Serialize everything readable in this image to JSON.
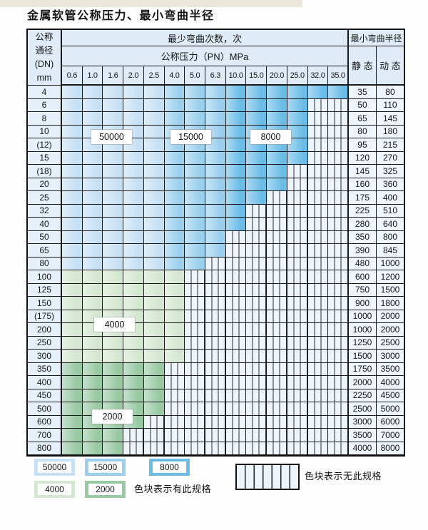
{
  "title": "金属软管公称压力、最小弯曲半径",
  "table": {
    "corner": [
      "公称",
      "通径",
      "(DN)",
      "mm"
    ],
    "bend_cycles_header": "最少弯曲次数，次",
    "pressure_header": "公称压力（PN）MPa",
    "radius_header": "最小弯曲半径",
    "static_header": "静 态",
    "dynamic_header": "动 态",
    "pressures": [
      "0.6",
      "1.0",
      "1.6",
      "2.0",
      "2.5",
      "4.0",
      "5.0",
      "6.3",
      "10.0",
      "15.0",
      "20.0",
      "25.0",
      "32.0",
      "35.0"
    ],
    "rows": [
      {
        "dn": "4",
        "zone": "blue",
        "colored_to": 13,
        "static": "35",
        "dynamic": "80"
      },
      {
        "dn": "6",
        "zone": "blue",
        "colored_to": 11,
        "static": "50",
        "dynamic": "110"
      },
      {
        "dn": "8",
        "zone": "blue",
        "colored_to": 11,
        "static": "65",
        "dynamic": "145"
      },
      {
        "dn": "10",
        "zone": "blue",
        "colored_to": 11,
        "static": "80",
        "dynamic": "180"
      },
      {
        "dn": "(12)",
        "zone": "blue",
        "colored_to": 11,
        "static": "95",
        "dynamic": "215"
      },
      {
        "dn": "15",
        "zone": "blue",
        "colored_to": 11,
        "static": "120",
        "dynamic": "270"
      },
      {
        "dn": "(18)",
        "zone": "blue",
        "colored_to": 10,
        "static": "145",
        "dynamic": "325"
      },
      {
        "dn": "20",
        "zone": "blue",
        "colored_to": 10,
        "static": "160",
        "dynamic": "360"
      },
      {
        "dn": "25",
        "zone": "blue",
        "colored_to": 9,
        "static": "175",
        "dynamic": "400"
      },
      {
        "dn": "32",
        "zone": "blue",
        "colored_to": 8,
        "static": "225",
        "dynamic": "510"
      },
      {
        "dn": "40",
        "zone": "blue",
        "colored_to": 8,
        "static": "280",
        "dynamic": "640"
      },
      {
        "dn": "50",
        "zone": "blue",
        "colored_to": 7,
        "static": "350",
        "dynamic": "800"
      },
      {
        "dn": "65",
        "zone": "blue",
        "colored_to": 7,
        "static": "390",
        "dynamic": "845"
      },
      {
        "dn": "80",
        "zone": "blue",
        "colored_to": 6,
        "static": "480",
        "dynamic": "1000"
      },
      {
        "dn": "100",
        "zone": "g4000",
        "colored_to": 5,
        "static": "600",
        "dynamic": "1200"
      },
      {
        "dn": "125",
        "zone": "g4000",
        "colored_to": 5,
        "static": "750",
        "dynamic": "1500"
      },
      {
        "dn": "150",
        "zone": "g4000",
        "colored_to": 5,
        "static": "900",
        "dynamic": "1800"
      },
      {
        "dn": "(175)",
        "zone": "g4000",
        "colored_to": 5,
        "static": "1000",
        "dynamic": "2000"
      },
      {
        "dn": "200",
        "zone": "g4000",
        "colored_to": 5,
        "static": "1000",
        "dynamic": "2000"
      },
      {
        "dn": "250",
        "zone": "g4000",
        "colored_to": 5,
        "static": "1250",
        "dynamic": "2500"
      },
      {
        "dn": "300",
        "zone": "g4000",
        "colored_to": 5,
        "static": "1500",
        "dynamic": "3000"
      },
      {
        "dn": "350",
        "zone": "g2000",
        "colored_to": 4,
        "static": "1750",
        "dynamic": "3500"
      },
      {
        "dn": "400",
        "zone": "g2000",
        "colored_to": 4,
        "static": "2000",
        "dynamic": "4000"
      },
      {
        "dn": "450",
        "zone": "g2000",
        "colored_to": 4,
        "static": "2250",
        "dynamic": "4500"
      },
      {
        "dn": "500",
        "zone": "g2000",
        "colored_to": 4,
        "static": "2500",
        "dynamic": "5000"
      },
      {
        "dn": "600",
        "zone": "g2000",
        "colored_to": 3,
        "static": "3000",
        "dynamic": "6000"
      },
      {
        "dn": "700",
        "zone": "g2000",
        "colored_to": 2,
        "static": "3500",
        "dynamic": "7000"
      },
      {
        "dn": "800",
        "zone": "g2000",
        "colored_to": 2,
        "static": "4000",
        "dynamic": "8000"
      }
    ],
    "float_labels": [
      {
        "text": "50000"
      },
      {
        "text": "15000"
      },
      {
        "text": "8000"
      },
      {
        "text": "4000"
      },
      {
        "text": "2000"
      }
    ]
  },
  "zones": {
    "z50000": "#c7e0f4",
    "z15000": "#9bcfee",
    "z8000": "#6bbde8",
    "g4000": "#d4e7d0",
    "g2000": "#98c9a3",
    "hatch_bg": "#edf4fb",
    "header_bg": "#dfecf8",
    "dn_bg": "#e6f0fa",
    "radius_bg": "#eef5fc"
  },
  "legend": {
    "items": [
      {
        "label": "50000",
        "zone": "z50000"
      },
      {
        "label": "15000",
        "zone": "z15000"
      },
      {
        "label": "8000",
        "zone": "z8000"
      },
      {
        "label": "4000",
        "zone": "g4000"
      },
      {
        "label": "2000",
        "zone": "g2000"
      }
    ],
    "has_spec_text": "色块表示有此规格",
    "no_spec_text": "色块表示无此规格"
  }
}
